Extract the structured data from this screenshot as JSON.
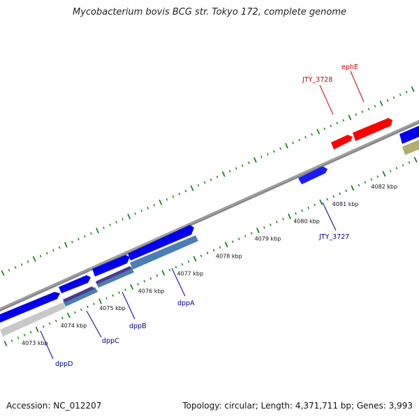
{
  "title": "Mycobacterium bovis BCG str. Tokyo 172, complete genome",
  "footer": {
    "accession": "Accession: NC_012207",
    "summary": "Topology: circular; Length: 4,371,711 bp; Genes: 3,993"
  },
  "scale_labels": [
    "4073 kbp",
    "4074 kbp",
    "4075 kbp",
    "4076 kbp",
    "4077 kbp",
    "4078 kbp",
    "4079 kbp",
    "4080 kbp",
    "4081 kbp",
    "4082 kbp"
  ],
  "gene_labels": [
    {
      "text": "dppD",
      "color": "#00008b"
    },
    {
      "text": "dppC",
      "color": "#00008b"
    },
    {
      "text": "dppB",
      "color": "#00008b"
    },
    {
      "text": "dppA",
      "color": "#00008b"
    },
    {
      "text": "JTY_3727",
      "color": "#00008b"
    },
    {
      "text": "JTY_3728",
      "color": "#cc0000"
    },
    {
      "text": "ephE",
      "color": "#cc0000"
    }
  ],
  "colors": {
    "forward_gene": "#0000ee",
    "reverse_gene": "#1a1aff",
    "red_gene": "#ff0000",
    "blast_steel": "#4a7fb5",
    "blast_purple": "#4a3a8c",
    "blast_gray": "#c8c8c8",
    "olive": "#b3ad6e",
    "backbone": "#888888",
    "ticks": "#007a00"
  }
}
